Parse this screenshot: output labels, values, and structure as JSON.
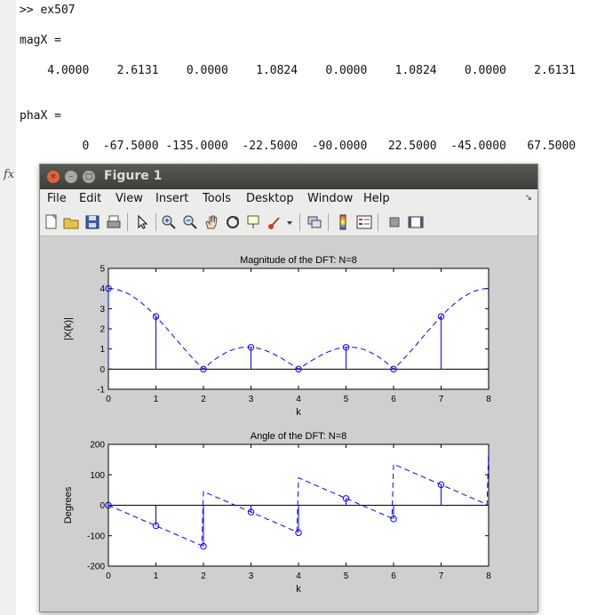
{
  "console": {
    "lines": [
      ">> ex507",
      "magX =",
      "    4.0000    2.6131    0.0000    1.0824    0.0000    1.0824    0.0000    2.6131",
      "phaX =",
      "         0  -67.5000 -135.0000  -22.5000  -90.0000   22.5000  -45.0000   67.5000"
    ],
    "fx_label": "fx"
  },
  "figure": {
    "title": "Figure 1",
    "window_buttons": {
      "close": "×",
      "minimize": "–",
      "maximize": "□"
    },
    "menu": [
      "File",
      "Edit",
      "View",
      "Insert",
      "Tools",
      "Desktop",
      "Window",
      "Help"
    ],
    "menu_arrow": "↘",
    "toolbar_icons": [
      "new-figure-icon",
      "open-file-icon",
      "save-icon",
      "print-icon",
      "pointer-icon",
      "zoom-in-icon",
      "zoom-out-icon",
      "pan-hand-icon",
      "rotate-3d-icon",
      "data-cursor-icon",
      "brush-icon",
      "brush-dropdown-icon",
      "link-plot-icon",
      "colorbar-icon",
      "legend-icon",
      "hide-plot-tools-icon",
      "show-plot-tools-icon"
    ]
  },
  "chart_data": [
    {
      "type": "stem",
      "title": "Magnitude of the DFT: N=8",
      "xlabel": "k",
      "ylabel": "|X(k)|",
      "xlim": [
        0,
        8
      ],
      "ylim": [
        -1,
        5
      ],
      "xticks": [
        "0",
        "1",
        "2",
        "3",
        "4",
        "5",
        "6",
        "7",
        "8"
      ],
      "yticks": [
        "-1",
        "0",
        "1",
        "2",
        "3",
        "4",
        "5"
      ],
      "k": [
        0,
        1,
        2,
        3,
        4,
        5,
        6,
        7
      ],
      "values": [
        4.0,
        2.6131,
        0.0,
        1.0824,
        0.0,
        1.0824,
        0.0,
        2.6131
      ],
      "dashed_curve": "continuous magnitude |X(e^jw)| overlaid, dashed",
      "color": "#0000ff"
    },
    {
      "type": "stem",
      "title": "Angle of the DFT: N=8",
      "xlabel": "k",
      "ylabel": "Degrees",
      "xlim": [
        0,
        8
      ],
      "ylim": [
        -200,
        200
      ],
      "xticks": [
        "0",
        "1",
        "2",
        "3",
        "4",
        "5",
        "6",
        "7",
        "8"
      ],
      "yticks": [
        "-200",
        "-100",
        "0",
        "100",
        "200"
      ],
      "k": [
        0,
        1,
        2,
        3,
        4,
        5,
        6,
        7
      ],
      "values": [
        0,
        -67.5,
        -135.0,
        -22.5,
        -90.0,
        22.5,
        -45.0,
        67.5
      ],
      "dashed_curve": "continuous phase overlaid, dashed, with jumps of +180 at k=2,4,6",
      "color": "#0000ff"
    }
  ]
}
